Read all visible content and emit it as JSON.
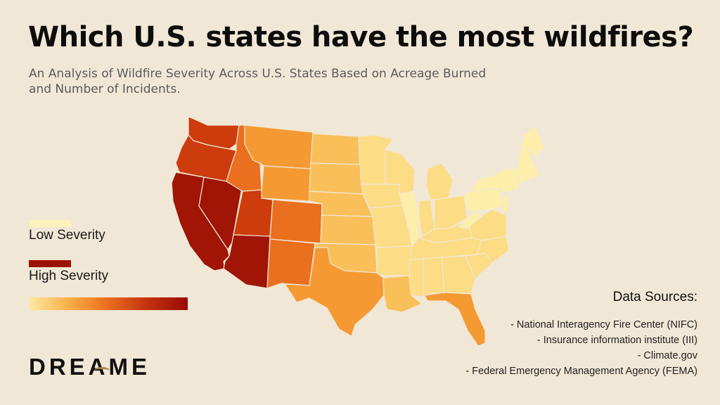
{
  "header": {
    "title": "Which U.S. states have the most wildfires?",
    "subtitle": "An Analysis of Wildfire Severity Across U.S. States Based on Acreage Burned and Number of Incidents."
  },
  "legend": {
    "low_label": "Low Severity",
    "high_label": "High Severity",
    "low_color": "#fdf3b8",
    "high_color": "#9b1205",
    "gradient_colors": [
      "#fde9a6",
      "#f8b046",
      "#ea6d1e",
      "#c2310f",
      "#9a0a05"
    ]
  },
  "logo": {
    "text": "DREAME",
    "accent_color": "#a7834a"
  },
  "sources": {
    "heading": "Data Sources:",
    "items": [
      "- National Interagency Fire Center (NIFC)",
      "- Insurance information institute (III)",
      "- Climate.gov",
      "- Federal Emergency Management Agency (FEMA)"
    ]
  },
  "map_data": {
    "metric": "wildfire severity (acreage burned and number of incidents)",
    "scale": [
      "low",
      "low-mid",
      "mid",
      "mid-high",
      "high",
      "very-high",
      "highest"
    ],
    "colors": {
      "low": "#fdeeaa",
      "low-mid": "#fcdc84",
      "mid": "#f9c05a",
      "mid-high": "#f59a33",
      "high": "#ea6f1e",
      "very-high": "#cd3c0c",
      "highest": "#a01505"
    },
    "states": [
      {
        "id": "WA",
        "severity": "very-high"
      },
      {
        "id": "OR",
        "severity": "very-high"
      },
      {
        "id": "CA",
        "severity": "highest"
      },
      {
        "id": "NV",
        "severity": "highest"
      },
      {
        "id": "ID",
        "severity": "high"
      },
      {
        "id": "MT",
        "severity": "mid-high"
      },
      {
        "id": "WY",
        "severity": "mid-high"
      },
      {
        "id": "UT",
        "severity": "very-high"
      },
      {
        "id": "AZ",
        "severity": "highest"
      },
      {
        "id": "CO",
        "severity": "high"
      },
      {
        "id": "NM",
        "severity": "high"
      },
      {
        "id": "ND",
        "severity": "mid"
      },
      {
        "id": "SD",
        "severity": "mid"
      },
      {
        "id": "NE",
        "severity": "mid"
      },
      {
        "id": "KS",
        "severity": "mid"
      },
      {
        "id": "OK",
        "severity": "mid"
      },
      {
        "id": "TX",
        "severity": "mid-high"
      },
      {
        "id": "MN",
        "severity": "low-mid"
      },
      {
        "id": "IA",
        "severity": "low-mid"
      },
      {
        "id": "MO",
        "severity": "low-mid"
      },
      {
        "id": "AR",
        "severity": "low-mid"
      },
      {
        "id": "LA",
        "severity": "mid"
      },
      {
        "id": "WI",
        "severity": "low-mid"
      },
      {
        "id": "IL",
        "severity": "low"
      },
      {
        "id": "MI",
        "severity": "low-mid"
      },
      {
        "id": "IN",
        "severity": "low-mid"
      },
      {
        "id": "OH",
        "severity": "low-mid"
      },
      {
        "id": "KY",
        "severity": "low-mid"
      },
      {
        "id": "TN",
        "severity": "low-mid"
      },
      {
        "id": "MS",
        "severity": "low-mid"
      },
      {
        "id": "AL",
        "severity": "low-mid"
      },
      {
        "id": "GA",
        "severity": "low-mid"
      },
      {
        "id": "FL",
        "severity": "mid-high"
      },
      {
        "id": "SC",
        "severity": "low-mid"
      },
      {
        "id": "NC",
        "severity": "low-mid"
      },
      {
        "id": "VA",
        "severity": "low-mid"
      },
      {
        "id": "WV",
        "severity": "low"
      },
      {
        "id": "PA",
        "severity": "low"
      },
      {
        "id": "NY",
        "severity": "low"
      },
      {
        "id": "NJ",
        "severity": "low"
      },
      {
        "id": "NE-states",
        "severity": "low"
      },
      {
        "id": "ME",
        "severity": "low"
      }
    ]
  }
}
